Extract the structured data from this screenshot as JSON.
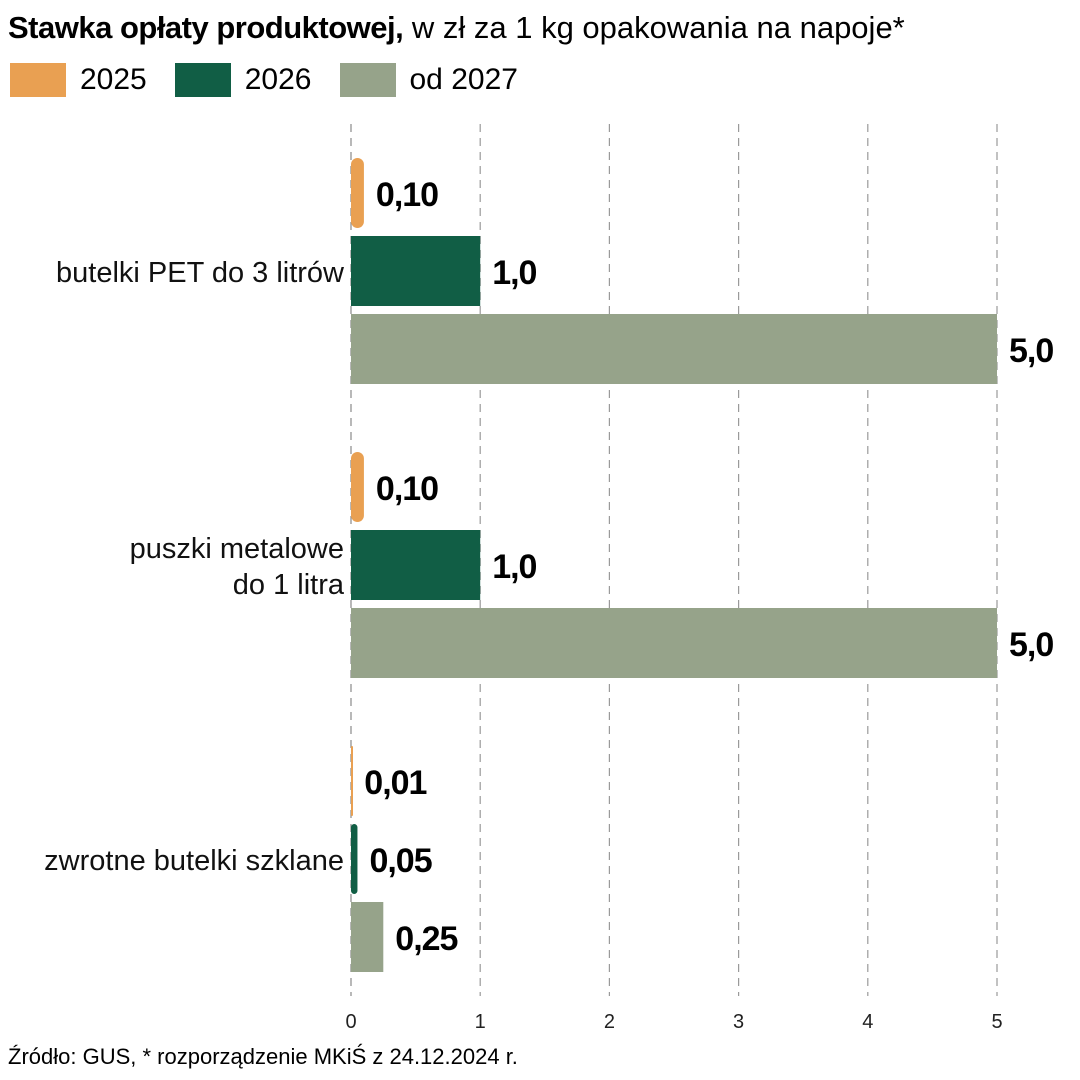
{
  "header": {
    "title_bold": "Stawka opłaty produktowej,",
    "title_rest": " w zł za 1 kg  opakowania na napoje*"
  },
  "footer": {
    "source": "Źródło: GUS, * rozporządzenie MKiŚ z 24.12.2024 r."
  },
  "chart_data": {
    "type": "bar",
    "orientation": "horizontal",
    "categories": [
      [
        "butelki PET do 3 litrów"
      ],
      [
        "puszki metalowe",
        "do 1 litra"
      ],
      [
        "zwrotne butelki szklane"
      ]
    ],
    "series": [
      {
        "name": "2025",
        "color": "#E9A052",
        "values": [
          0.1,
          0.1,
          0.01
        ],
        "labels": [
          "0,10",
          "0,10",
          "0,01"
        ]
      },
      {
        "name": "2026",
        "color": "#115E45",
        "values": [
          1.0,
          1.0,
          0.05
        ],
        "labels": [
          "1,0",
          "1,0",
          "0,05"
        ]
      },
      {
        "name": "od 2027",
        "color": "#96A38A",
        "values": [
          5.0,
          5.0,
          0.25
        ],
        "labels": [
          "5,0",
          "5,0",
          "0,25"
        ]
      }
    ],
    "xlim": [
      0,
      5
    ],
    "xticks": [
      0,
      1,
      2,
      3,
      4,
      5
    ],
    "xtick_labels": [
      "0",
      "1",
      "2",
      "3",
      "4",
      "5"
    ],
    "grid": "vertical dashed",
    "legend": "top-left"
  }
}
